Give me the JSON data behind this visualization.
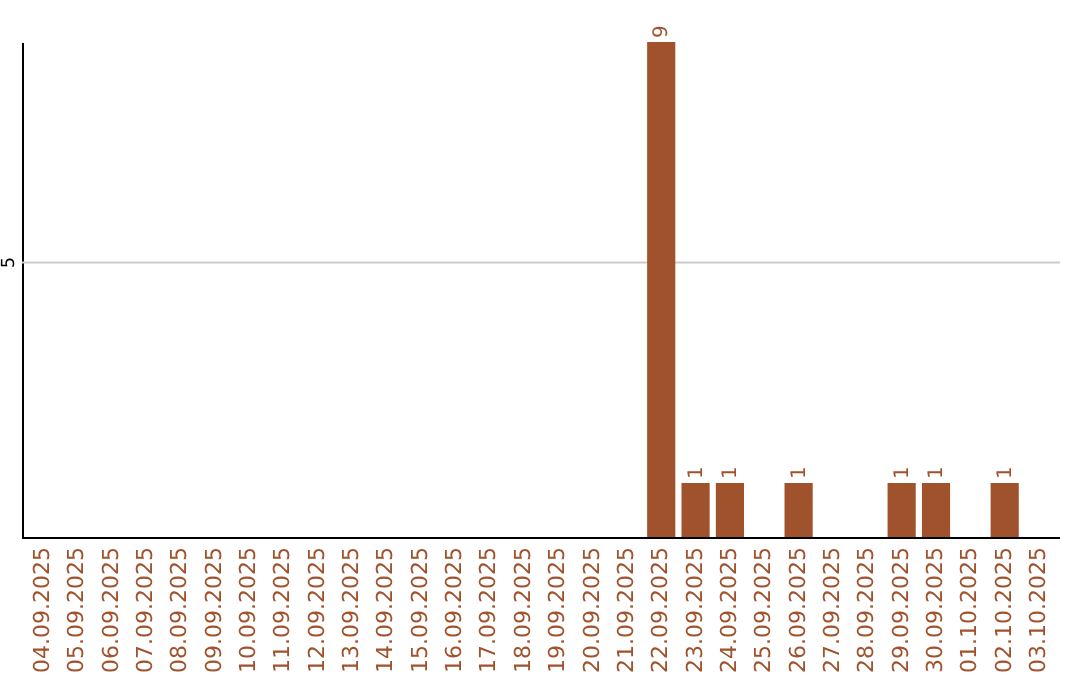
{
  "chart_data": {
    "type": "bar",
    "data_labels": true,
    "categories": [
      "04.09.2025",
      "05.09.2025",
      "06.09.2025",
      "07.09.2025",
      "08.09.2025",
      "09.09.2025",
      "10.09.2025",
      "11.09.2025",
      "12.09.2025",
      "13.09.2025",
      "14.09.2025",
      "15.09.2025",
      "16.09.2025",
      "17.09.2025",
      "18.09.2025",
      "19.09.2025",
      "20.09.2025",
      "21.09.2025",
      "22.09.2025",
      "23.09.2025",
      "24.09.2025",
      "25.09.2025",
      "26.09.2025",
      "27.09.2025",
      "28.09.2025",
      "29.09.2025",
      "30.09.2025",
      "01.10.2025",
      "02.10.2025",
      "03.10.2025"
    ],
    "values": [
      null,
      null,
      null,
      null,
      null,
      null,
      null,
      null,
      null,
      null,
      null,
      null,
      null,
      null,
      null,
      null,
      null,
      null,
      9,
      1,
      1,
      null,
      1,
      null,
      null,
      1,
      1,
      null,
      1,
      null
    ],
    "color": "#a0522d",
    "ref_lines": [
      {
        "axis": "y",
        "value": 5,
        "label": "5",
        "color": "#cccccc"
      }
    ]
  }
}
